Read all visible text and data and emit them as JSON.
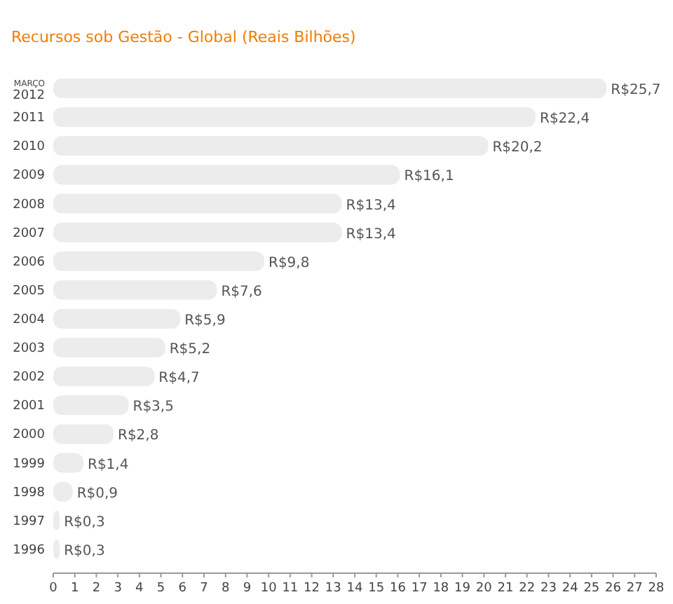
{
  "chart_data": {
    "type": "bar",
    "orientation": "horizontal",
    "subtitle": "Recursos sob Gestão - Global (Reais Bilhões)",
    "categories": [
      "MARÇO 2012",
      "2011",
      "2010",
      "2009",
      "2008",
      "2007",
      "2006",
      "2005",
      "2004",
      "2003",
      "2002",
      "2001",
      "2000",
      "1999",
      "1998",
      "1997",
      "1996"
    ],
    "values": [
      25.7,
      22.4,
      20.2,
      16.1,
      13.4,
      13.4,
      9.8,
      7.6,
      5.9,
      5.2,
      4.7,
      3.5,
      2.8,
      1.4,
      0.9,
      0.3,
      0.3
    ],
    "value_labels": [
      "R$25,7",
      "R$22,4",
      "R$20,2",
      "R$16,1",
      "R$13,4",
      "R$13,4",
      "R$9,8",
      "R$7,6",
      "R$5,9",
      "R$5,2",
      "R$4,7",
      "R$3,5",
      "R$2,8",
      "R$1,4",
      "R$0,9",
      "R$0,3",
      "R$0,3"
    ],
    "color": "#ececec",
    "xlim": [
      0,
      28
    ],
    "xticks": [
      0,
      1,
      2,
      3,
      4,
      5,
      6,
      7,
      8,
      9,
      10,
      11,
      12,
      13,
      14,
      15,
      16,
      17,
      18,
      19,
      20,
      21,
      22,
      23,
      24,
      25,
      26,
      27,
      28
    ],
    "grid": false
  }
}
